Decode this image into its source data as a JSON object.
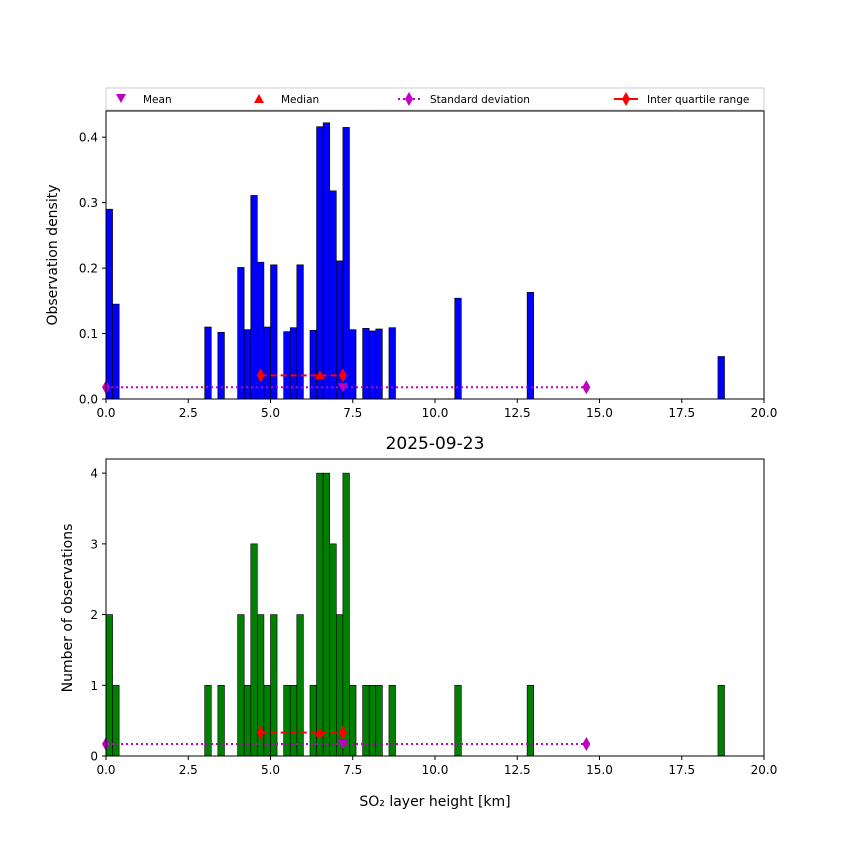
{
  "chart_data": [
    {
      "type": "bar",
      "panel": "top",
      "title": "",
      "xlabel": "",
      "ylabel": "Observation density",
      "xlim": [
        0,
        20
      ],
      "ylim": [
        0,
        0.44
      ],
      "xticks": [
        0,
        2.5,
        5,
        7.5,
        10,
        12.5,
        15,
        17.5,
        20
      ],
      "xtick_labels": [
        "0.0",
        "2.5",
        "5.0",
        "7.5",
        "10.0",
        "12.5",
        "15.0",
        "17.5",
        "20.0"
      ],
      "yticks": [
        0,
        0.1,
        0.2,
        0.3,
        0.4
      ],
      "ytick_labels": [
        "0.0",
        "0.1",
        "0.2",
        "0.3",
        "0.4"
      ],
      "bin_width": 0.2,
      "bar_color": "#0000ff",
      "bars": [
        {
          "x": 0.0,
          "value": 0.29
        },
        {
          "x": 0.2,
          "value": 0.145
        },
        {
          "x": 3.0,
          "value": 0.11
        },
        {
          "x": 3.4,
          "value": 0.102
        },
        {
          "x": 4.0,
          "value": 0.201
        },
        {
          "x": 4.2,
          "value": 0.106
        },
        {
          "x": 4.4,
          "value": 0.311
        },
        {
          "x": 4.6,
          "value": 0.209
        },
        {
          "x": 4.8,
          "value": 0.11
        },
        {
          "x": 5.0,
          "value": 0.205
        },
        {
          "x": 5.4,
          "value": 0.103
        },
        {
          "x": 5.6,
          "value": 0.109
        },
        {
          "x": 5.8,
          "value": 0.205
        },
        {
          "x": 6.2,
          "value": 0.105
        },
        {
          "x": 6.4,
          "value": 0.416
        },
        {
          "x": 6.6,
          "value": 0.422
        },
        {
          "x": 6.8,
          "value": 0.318
        },
        {
          "x": 7.0,
          "value": 0.211
        },
        {
          "x": 7.2,
          "value": 0.415
        },
        {
          "x": 7.4,
          "value": 0.106
        },
        {
          "x": 7.8,
          "value": 0.108
        },
        {
          "x": 8.0,
          "value": 0.104
        },
        {
          "x": 8.2,
          "value": 0.107
        },
        {
          "x": 8.6,
          "value": 0.109
        },
        {
          "x": 10.6,
          "value": 0.154
        },
        {
          "x": 12.8,
          "value": 0.163
        },
        {
          "x": 18.6,
          "value": 0.065
        }
      ],
      "stats": {
        "mean": {
          "x": 7.2,
          "y": 0.018
        },
        "median": {
          "x": 6.5,
          "y": 0.036
        },
        "std_dev": {
          "x0": 0.0,
          "x1": 14.6,
          "y": 0.018
        },
        "iqr": {
          "x0": 4.7,
          "x1": 7.2,
          "y": 0.036
        }
      }
    },
    {
      "type": "bar",
      "panel": "bottom",
      "title": "2025-09-23",
      "xlabel": "SO₂ layer height [km]",
      "ylabel": "Number of observations",
      "xlim": [
        0,
        20
      ],
      "ylim": [
        0,
        4.2
      ],
      "xticks": [
        0,
        2.5,
        5,
        7.5,
        10,
        12.5,
        15,
        17.5,
        20
      ],
      "xtick_labels": [
        "0.0",
        "2.5",
        "5.0",
        "7.5",
        "10.0",
        "12.5",
        "15.0",
        "17.5",
        "20.0"
      ],
      "yticks": [
        0,
        1,
        2,
        3,
        4
      ],
      "ytick_labels": [
        "0",
        "1",
        "2",
        "3",
        "4"
      ],
      "bin_width": 0.2,
      "bar_color": "#008000",
      "bars": [
        {
          "x": 0.0,
          "value": 2
        },
        {
          "x": 0.2,
          "value": 1
        },
        {
          "x": 3.0,
          "value": 1
        },
        {
          "x": 3.4,
          "value": 1
        },
        {
          "x": 4.0,
          "value": 2
        },
        {
          "x": 4.2,
          "value": 1
        },
        {
          "x": 4.4,
          "value": 3
        },
        {
          "x": 4.6,
          "value": 2
        },
        {
          "x": 4.8,
          "value": 1
        },
        {
          "x": 5.0,
          "value": 2
        },
        {
          "x": 5.4,
          "value": 1
        },
        {
          "x": 5.6,
          "value": 1
        },
        {
          "x": 5.8,
          "value": 2
        },
        {
          "x": 6.2,
          "value": 1
        },
        {
          "x": 6.4,
          "value": 4
        },
        {
          "x": 6.6,
          "value": 4
        },
        {
          "x": 6.8,
          "value": 3
        },
        {
          "x": 7.0,
          "value": 2
        },
        {
          "x": 7.2,
          "value": 4
        },
        {
          "x": 7.4,
          "value": 1
        },
        {
          "x": 7.8,
          "value": 1
        },
        {
          "x": 8.0,
          "value": 1
        },
        {
          "x": 8.2,
          "value": 1
        },
        {
          "x": 8.6,
          "value": 1
        },
        {
          "x": 10.6,
          "value": 1
        },
        {
          "x": 12.8,
          "value": 1
        },
        {
          "x": 18.6,
          "value": 1
        }
      ],
      "stats": {
        "mean": {
          "x": 7.2,
          "y": 0.17
        },
        "median": {
          "x": 6.5,
          "y": 0.33
        },
        "std_dev": {
          "x0": 0.0,
          "x1": 14.6,
          "y": 0.17
        },
        "iqr": {
          "x0": 4.7,
          "x1": 7.2,
          "y": 0.33
        }
      }
    }
  ],
  "legend": {
    "placement": "top, above upper panel",
    "items": [
      {
        "label": "Mean",
        "marker": "triangle-down",
        "color": "#c000c0"
      },
      {
        "label": "Median",
        "marker": "triangle-up",
        "color": "#ff0000"
      },
      {
        "label": "Standard deviation",
        "marker": "diamond-dotted-line",
        "color": "#c000c0"
      },
      {
        "label": "Inter quartile range",
        "marker": "diamond-solid-line",
        "color": "#ff0000"
      }
    ]
  }
}
